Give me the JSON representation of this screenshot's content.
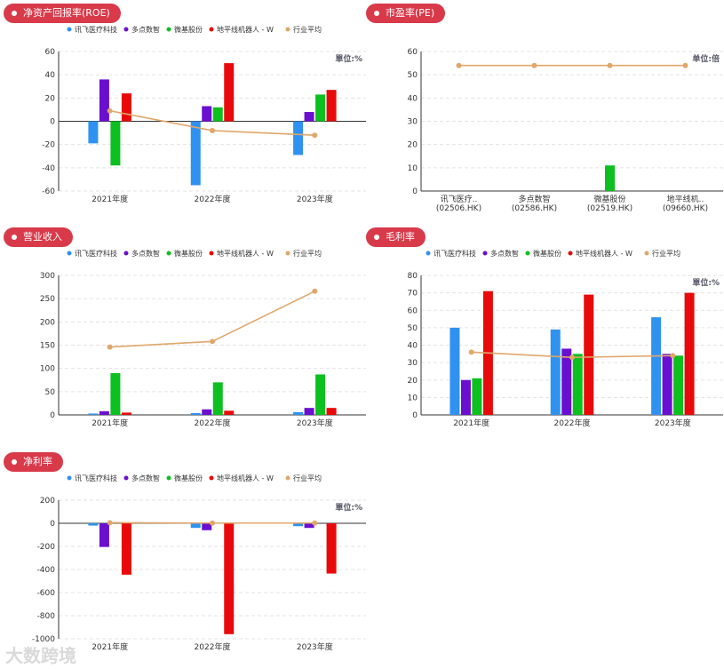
{
  "colors": {
    "xunfei": "#2f92f0",
    "duodian": "#6a0fd0",
    "weiji": "#0cc01f",
    "dipingxian": "#e80a0a",
    "avg": "#e0a76a",
    "badge": "#d83a4a"
  },
  "legend_labels": [
    "讯飞医疗科技",
    "多点数智",
    "微基股份",
    "地平线机器人 - W",
    "行业平均"
  ],
  "unit_pct": "單位:%",
  "unit_times": "单位:倍",
  "watermark": "大数跨境",
  "chart_data": [
    {
      "id": "roe",
      "type": "bar",
      "title": "净资产回报率(ROE)",
      "unit_label": "單位:%",
      "categories": [
        "2021年度",
        "2022年度",
        "2023年度"
      ],
      "ylim": [
        -60,
        60
      ],
      "yticks": [
        -60,
        -40,
        -20,
        0,
        20,
        40,
        60
      ],
      "series": [
        {
          "name": "讯飞医疗科技",
          "values": [
            -19,
            -55,
            -29
          ]
        },
        {
          "name": "多点数智",
          "values": [
            36,
            13,
            8
          ]
        },
        {
          "name": "微基股份",
          "values": [
            -38,
            12,
            23
          ]
        },
        {
          "name": "地平线机器人 - W",
          "values": [
            24,
            50,
            27
          ]
        }
      ],
      "line": {
        "name": "行业平均",
        "values": [
          9,
          -8,
          -12
        ]
      }
    },
    {
      "id": "pe",
      "type": "bar",
      "title": "市盈率(PE)",
      "unit_label": "单位:倍",
      "categories": [
        "讯飞医疗..\n(02506.HK)",
        "多点数智\n(02586.HK)",
        "微基股份\n(02519.HK)",
        "地平线机..\n(09660.HK)"
      ],
      "ylim": [
        0,
        60
      ],
      "yticks": [
        0,
        10,
        20,
        30,
        40,
        50,
        60
      ],
      "values": [
        0,
        0,
        11,
        0
      ],
      "line": {
        "name": "行业平均",
        "values": [
          54,
          54,
          54,
          54
        ]
      }
    },
    {
      "id": "revenue",
      "type": "bar",
      "title": "营业收入",
      "unit_label": "",
      "categories": [
        "2021年度",
        "2022年度",
        "2023年度"
      ],
      "ylim": [
        0,
        300
      ],
      "yticks": [
        0,
        50,
        100,
        150,
        200,
        250,
        300
      ],
      "series": [
        {
          "name": "讯飞医疗科技",
          "values": [
            3,
            4,
            6
          ]
        },
        {
          "name": "多点数智",
          "values": [
            8,
            12,
            15
          ]
        },
        {
          "name": "微基股份",
          "values": [
            90,
            70,
            87
          ]
        },
        {
          "name": "地平线机器人 - W",
          "values": [
            5,
            9,
            15
          ]
        }
      ],
      "line": {
        "name": "行业平均",
        "values": [
          146,
          158,
          266
        ]
      }
    },
    {
      "id": "gross",
      "type": "bar",
      "title": "毛利率",
      "unit_label": "單位:%",
      "categories": [
        "2021年度",
        "2022年度",
        "2023年度"
      ],
      "ylim": [
        0,
        80
      ],
      "yticks": [
        0,
        10,
        20,
        30,
        40,
        50,
        60,
        70,
        80
      ],
      "series": [
        {
          "name": "讯飞医疗科技",
          "values": [
            50,
            49,
            56
          ]
        },
        {
          "name": "多点数智",
          "values": [
            20,
            38,
            35
          ]
        },
        {
          "name": "微基股份",
          "values": [
            21,
            35,
            34
          ]
        },
        {
          "name": "地平线机器人 - W",
          "values": [
            71,
            69,
            70
          ]
        }
      ],
      "line": {
        "name": "行业平均",
        "values": [
          36,
          33,
          34
        ]
      }
    },
    {
      "id": "net",
      "type": "bar",
      "title": "净利率",
      "unit_label": "單位:%",
      "categories": [
        "2021年度",
        "2022年度",
        "2023年度"
      ],
      "ylim": [
        -1000,
        200
      ],
      "yticks": [
        -1000,
        -800,
        -600,
        -400,
        -200,
        0,
        200
      ],
      "series": [
        {
          "name": "讯飞医疗科技",
          "values": [
            -20,
            -40,
            -25
          ]
        },
        {
          "name": "多点数智",
          "values": [
            -205,
            -60,
            -40
          ]
        },
        {
          "name": "微基股份",
          "values": [
            0,
            0,
            0
          ]
        },
        {
          "name": "地平线机器人 - W",
          "values": [
            -445,
            -960,
            -435
          ]
        }
      ],
      "line": {
        "name": "行业平均",
        "values": [
          5,
          2,
          2
        ]
      }
    }
  ]
}
